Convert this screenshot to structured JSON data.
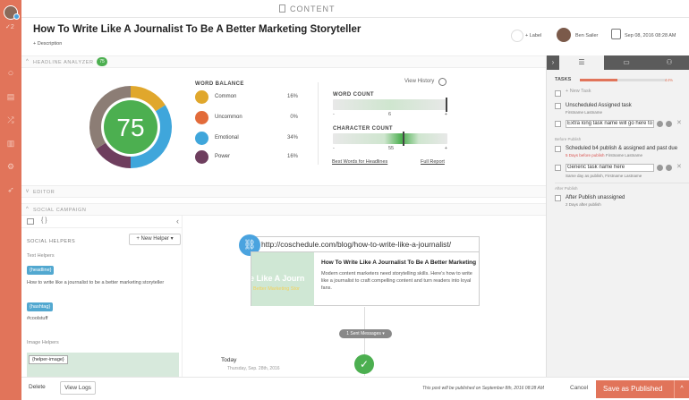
{
  "topbar": {
    "title": "CONTENT"
  },
  "header": {
    "title": "How To Write Like A Journalist To Be A Better Marketing Storyteller",
    "description_link": "+ Description",
    "label_button": "+ Label",
    "user_name": "Ben Sailer",
    "date": "Sep 08, 2016 08:28 AM"
  },
  "analyzer": {
    "section_label": "HEADLINE ANALYZER",
    "score": "75",
    "word_balance_title": "WORD BALANCE",
    "word_balance": [
      {
        "name": "Common",
        "percent": "16%",
        "color": "#e0a72c",
        "value": 16
      },
      {
        "name": "Uncommon",
        "percent": "0%",
        "color": "#e26b3a",
        "value": 0
      },
      {
        "name": "Emotional",
        "percent": "34%",
        "color": "#3fa6db",
        "value": 34
      },
      {
        "name": "Power",
        "percent": "16%",
        "color": "#6e3e5e",
        "value": 16
      }
    ],
    "view_history": "View History",
    "word_count_label": "WORD COUNT",
    "word_count_value": "6",
    "char_count_label": "CHARACTER COUNT",
    "char_count_value": "55",
    "minus": "-",
    "plus": "+",
    "link_best_words": "Best Words for Headlines",
    "link_full_report": "Full Report"
  },
  "sections": {
    "editor": "EDITOR",
    "social": "SOCIAL CAMPAIGN"
  },
  "social_helpers": {
    "title": "SOCIAL HELPERS",
    "new_helper": "+ New Helper ▾",
    "text_helpers": "Text Helpers",
    "headline_tag": "{headline}",
    "headline_text": "How to write like a journalist to be a better marketing storyteller",
    "hashtag_tag": "{hashtag}",
    "hashtag_text": "#coolstuff",
    "image_helpers": "Image Helpers",
    "image_placeholder": "{helper-image}"
  },
  "preview": {
    "url": "http://coschedule.com/blog/how-to-write-like-a-journalist/",
    "card_title": "How To Write Like A Journalist To Be A Better Marketing",
    "card_desc": "Modern content marketers need storytelling skills. Here's how to write like a journalist to craft compelling content and turn readers into loyal fans.",
    "img_text1": "e Like A Journ",
    "img_text2": "Better Marketing Stor",
    "sent_messages": "1 Sent Messages ▾",
    "today": "Today",
    "today_date": "Thursday, Sep. 28th, 2016"
  },
  "footer": {
    "delete": "Delete",
    "view_logs": "View Logs",
    "publish_note": "This post will be published on September 8th, 2016 08:28 AM",
    "cancel": "Cancel",
    "save": "Save as Published"
  },
  "tasks": {
    "title": "TASKS",
    "progress_percent": "44%",
    "progress_value": 0.44,
    "new_task": "+ New Task",
    "items": [
      {
        "name": "Unscheduled Assigned task",
        "sub": "Firstname Lastname"
      },
      {
        "name": "Extra long task name will go here to see"
      },
      {
        "name": "Scheduled b4 publish & assigned and past due",
        "sub_red": "5 Days before publish",
        "sub": "Firstname Lastname"
      },
      {
        "name": "Generic task name here",
        "sub": "Same day as publish, Firstname Lastname"
      },
      {
        "name": "After Publish unassigned",
        "sub": "2 Days after publish"
      }
    ],
    "before_publish": "Before Publish",
    "after_publish": "After Publish"
  }
}
